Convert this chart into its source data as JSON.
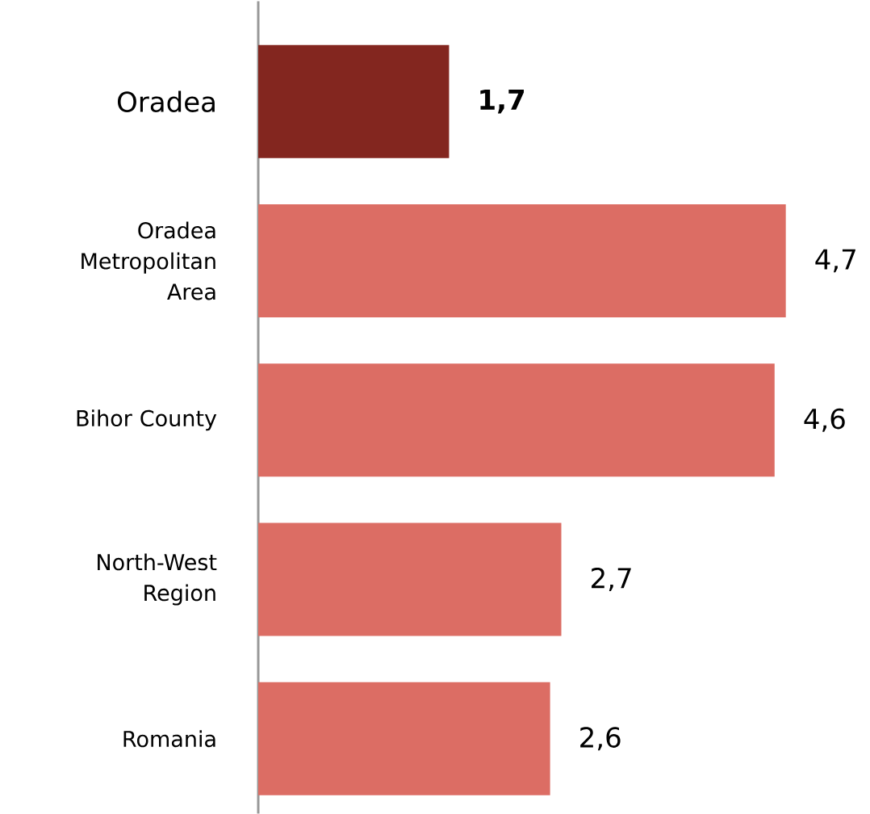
{
  "chart_data": {
    "type": "bar",
    "orientation": "horizontal",
    "categories": [
      "Oradea",
      "Oradea Metropolitan Area",
      "Bihor County",
      "North-West Region",
      "Romania"
    ],
    "values": [
      1.7,
      4.7,
      4.6,
      2.7,
      2.6
    ],
    "colors": [
      "#83261f",
      "#dc6d64",
      "#dc6d64",
      "#dc6d64",
      "#dc6d64"
    ],
    "value_labels": [
      "1,7",
      "4,7",
      "4,6",
      "2,7",
      "2,6"
    ]
  }
}
